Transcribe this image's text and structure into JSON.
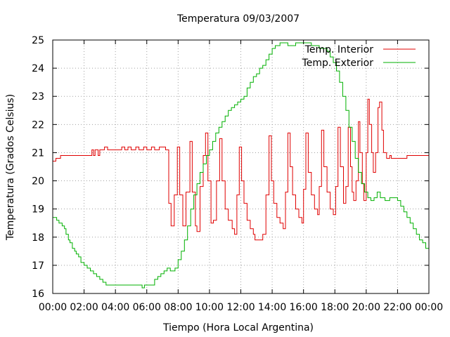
{
  "chart_data": {
    "type": "line",
    "title": "Temperatura 09/03/2007",
    "xlabel": "Tiempo (Hora Local Argentina)",
    "ylabel": "Temperatura (Grados Celsius)",
    "xlim": [
      0,
      24
    ],
    "ylim": [
      16,
      25
    ],
    "x_ticks": [
      "00:00",
      "02:00",
      "04:00",
      "06:00",
      "08:00",
      "10:00",
      "12:00",
      "14:00",
      "16:00",
      "18:00",
      "20:00",
      "22:00",
      "00:00"
    ],
    "y_ticks": [
      "16",
      "17",
      "18",
      "19",
      "20",
      "21",
      "22",
      "23",
      "24",
      "25"
    ],
    "grid": true,
    "legend_position": "top-right",
    "x_unit": "hours (local time)",
    "series": [
      {
        "name": "Temp. Interior",
        "color": "#e00000",
        "step": true,
        "points": [
          [
            0.0,
            20.7
          ],
          [
            0.2,
            20.8
          ],
          [
            0.4,
            20.8
          ],
          [
            0.5,
            20.9
          ],
          [
            1.0,
            20.9
          ],
          [
            1.5,
            20.9
          ],
          [
            2.0,
            20.9
          ],
          [
            2.4,
            20.9
          ],
          [
            2.5,
            21.1
          ],
          [
            2.6,
            20.9
          ],
          [
            2.7,
            21.1
          ],
          [
            2.9,
            20.9
          ],
          [
            3.0,
            21.1
          ],
          [
            3.2,
            21.1
          ],
          [
            3.3,
            21.2
          ],
          [
            3.5,
            21.1
          ],
          [
            4.0,
            21.1
          ],
          [
            4.3,
            21.1
          ],
          [
            4.4,
            21.2
          ],
          [
            4.6,
            21.1
          ],
          [
            4.8,
            21.2
          ],
          [
            5.0,
            21.1
          ],
          [
            5.3,
            21.2
          ],
          [
            5.5,
            21.1
          ],
          [
            5.8,
            21.2
          ],
          [
            6.0,
            21.1
          ],
          [
            6.3,
            21.2
          ],
          [
            6.5,
            21.1
          ],
          [
            6.8,
            21.2
          ],
          [
            7.0,
            21.2
          ],
          [
            7.2,
            21.1
          ],
          [
            7.4,
            19.2
          ],
          [
            7.55,
            18.4
          ],
          [
            7.75,
            19.5
          ],
          [
            7.95,
            21.2
          ],
          [
            8.1,
            19.5
          ],
          [
            8.3,
            18.4
          ],
          [
            8.5,
            19.6
          ],
          [
            8.75,
            21.4
          ],
          [
            8.9,
            19.6
          ],
          [
            9.1,
            18.4
          ],
          [
            9.2,
            18.2
          ],
          [
            9.4,
            19.8
          ],
          [
            9.6,
            20.9
          ],
          [
            9.75,
            21.7
          ],
          [
            9.9,
            20.0
          ],
          [
            10.1,
            18.5
          ],
          [
            10.25,
            18.6
          ],
          [
            10.45,
            20.0
          ],
          [
            10.65,
            21.5
          ],
          [
            10.8,
            20.0
          ],
          [
            11.0,
            19.0
          ],
          [
            11.2,
            18.6
          ],
          [
            11.45,
            18.3
          ],
          [
            11.6,
            18.1
          ],
          [
            11.75,
            19.5
          ],
          [
            11.9,
            21.2
          ],
          [
            12.05,
            20.0
          ],
          [
            12.2,
            19.2
          ],
          [
            12.4,
            18.6
          ],
          [
            12.6,
            18.3
          ],
          [
            12.8,
            18.1
          ],
          [
            12.9,
            17.9
          ],
          [
            13.3,
            17.9
          ],
          [
            13.4,
            18.1
          ],
          [
            13.6,
            19.5
          ],
          [
            13.8,
            21.6
          ],
          [
            13.95,
            20.0
          ],
          [
            14.1,
            19.2
          ],
          [
            14.3,
            18.7
          ],
          [
            14.5,
            18.5
          ],
          [
            14.7,
            18.3
          ],
          [
            14.85,
            19.6
          ],
          [
            15.0,
            21.7
          ],
          [
            15.15,
            20.5
          ],
          [
            15.3,
            19.5
          ],
          [
            15.5,
            19.0
          ],
          [
            15.7,
            18.7
          ],
          [
            15.9,
            18.5
          ],
          [
            16.0,
            19.7
          ],
          [
            16.15,
            21.7
          ],
          [
            16.3,
            20.3
          ],
          [
            16.5,
            19.5
          ],
          [
            16.7,
            19.0
          ],
          [
            16.9,
            18.8
          ],
          [
            17.0,
            19.8
          ],
          [
            17.15,
            21.8
          ],
          [
            17.3,
            20.5
          ],
          [
            17.5,
            19.6
          ],
          [
            17.7,
            19.0
          ],
          [
            17.9,
            18.8
          ],
          [
            18.05,
            19.8
          ],
          [
            18.2,
            21.9
          ],
          [
            18.35,
            20.5
          ],
          [
            18.55,
            19.2
          ],
          [
            18.7,
            19.8
          ],
          [
            18.85,
            21.9
          ],
          [
            19.0,
            20.5
          ],
          [
            19.1,
            19.6
          ],
          [
            19.2,
            19.3
          ],
          [
            19.35,
            20.0
          ],
          [
            19.5,
            22.1
          ],
          [
            19.6,
            21.0
          ],
          [
            19.75,
            19.9
          ],
          [
            19.85,
            19.3
          ],
          [
            20.0,
            21.0
          ],
          [
            20.1,
            22.9
          ],
          [
            20.2,
            22.0
          ],
          [
            20.35,
            21.0
          ],
          [
            20.45,
            20.3
          ],
          [
            20.6,
            21.0
          ],
          [
            20.75,
            22.6
          ],
          [
            20.85,
            22.8
          ],
          [
            21.0,
            21.8
          ],
          [
            21.1,
            21.0
          ],
          [
            21.3,
            20.8
          ],
          [
            21.5,
            20.9
          ],
          [
            21.6,
            20.8
          ],
          [
            22.0,
            20.8
          ],
          [
            22.5,
            20.8
          ],
          [
            22.6,
            20.9
          ],
          [
            23.0,
            20.9
          ],
          [
            24.0,
            20.9
          ]
        ]
      },
      {
        "name": "Temp. Exterior",
        "color": "#00b000",
        "step": true,
        "points": [
          [
            0.0,
            18.7
          ],
          [
            0.25,
            18.6
          ],
          [
            0.4,
            18.5
          ],
          [
            0.6,
            18.4
          ],
          [
            0.75,
            18.3
          ],
          [
            0.85,
            18.1
          ],
          [
            1.0,
            17.9
          ],
          [
            1.1,
            17.8
          ],
          [
            1.25,
            17.6
          ],
          [
            1.4,
            17.5
          ],
          [
            1.5,
            17.4
          ],
          [
            1.65,
            17.3
          ],
          [
            1.8,
            17.1
          ],
          [
            2.0,
            17.0
          ],
          [
            2.2,
            16.9
          ],
          [
            2.4,
            16.8
          ],
          [
            2.6,
            16.7
          ],
          [
            2.8,
            16.6
          ],
          [
            3.0,
            16.5
          ],
          [
            3.2,
            16.4
          ],
          [
            3.4,
            16.3
          ],
          [
            4.0,
            16.3
          ],
          [
            5.0,
            16.3
          ],
          [
            5.6,
            16.3
          ],
          [
            5.7,
            16.2
          ],
          [
            5.85,
            16.3
          ],
          [
            6.0,
            16.3
          ],
          [
            6.3,
            16.3
          ],
          [
            6.5,
            16.5
          ],
          [
            6.7,
            16.6
          ],
          [
            6.9,
            16.7
          ],
          [
            7.1,
            16.8
          ],
          [
            7.3,
            16.9
          ],
          [
            7.5,
            16.8
          ],
          [
            7.8,
            16.9
          ],
          [
            8.0,
            17.2
          ],
          [
            8.2,
            17.5
          ],
          [
            8.4,
            17.9
          ],
          [
            8.6,
            18.4
          ],
          [
            8.8,
            19.0
          ],
          [
            9.0,
            19.5
          ],
          [
            9.2,
            19.9
          ],
          [
            9.4,
            20.3
          ],
          [
            9.6,
            20.6
          ],
          [
            9.8,
            20.9
          ],
          [
            10.0,
            21.1
          ],
          [
            10.2,
            21.4
          ],
          [
            10.4,
            21.7
          ],
          [
            10.6,
            21.9
          ],
          [
            10.8,
            22.1
          ],
          [
            11.0,
            22.3
          ],
          [
            11.2,
            22.5
          ],
          [
            11.4,
            22.6
          ],
          [
            11.6,
            22.7
          ],
          [
            11.8,
            22.8
          ],
          [
            12.0,
            22.9
          ],
          [
            12.2,
            23.0
          ],
          [
            12.4,
            23.3
          ],
          [
            12.6,
            23.5
          ],
          [
            12.8,
            23.7
          ],
          [
            13.0,
            23.8
          ],
          [
            13.2,
            24.0
          ],
          [
            13.4,
            24.1
          ],
          [
            13.6,
            24.3
          ],
          [
            13.8,
            24.5
          ],
          [
            14.0,
            24.7
          ],
          [
            14.2,
            24.8
          ],
          [
            14.5,
            24.9
          ],
          [
            15.0,
            24.8
          ],
          [
            15.5,
            24.9
          ],
          [
            16.0,
            24.9
          ],
          [
            16.5,
            24.8
          ],
          [
            17.0,
            24.7
          ],
          [
            17.5,
            24.6
          ],
          [
            17.7,
            24.4
          ],
          [
            17.9,
            24.2
          ],
          [
            18.1,
            23.9
          ],
          [
            18.3,
            23.5
          ],
          [
            18.5,
            23.0
          ],
          [
            18.7,
            22.5
          ],
          [
            18.9,
            21.9
          ],
          [
            19.1,
            21.4
          ],
          [
            19.3,
            20.8
          ],
          [
            19.5,
            20.3
          ],
          [
            19.7,
            19.9
          ],
          [
            19.9,
            19.6
          ],
          [
            20.1,
            19.4
          ],
          [
            20.3,
            19.3
          ],
          [
            20.5,
            19.4
          ],
          [
            20.7,
            19.6
          ],
          [
            20.9,
            19.4
          ],
          [
            21.2,
            19.3
          ],
          [
            21.5,
            19.4
          ],
          [
            21.8,
            19.4
          ],
          [
            22.0,
            19.3
          ],
          [
            22.2,
            19.1
          ],
          [
            22.4,
            18.9
          ],
          [
            22.6,
            18.7
          ],
          [
            22.8,
            18.5
          ],
          [
            23.0,
            18.3
          ],
          [
            23.2,
            18.1
          ],
          [
            23.4,
            17.9
          ],
          [
            23.6,
            17.8
          ],
          [
            23.8,
            17.6
          ],
          [
            24.0,
            17.4
          ]
        ]
      }
    ]
  }
}
